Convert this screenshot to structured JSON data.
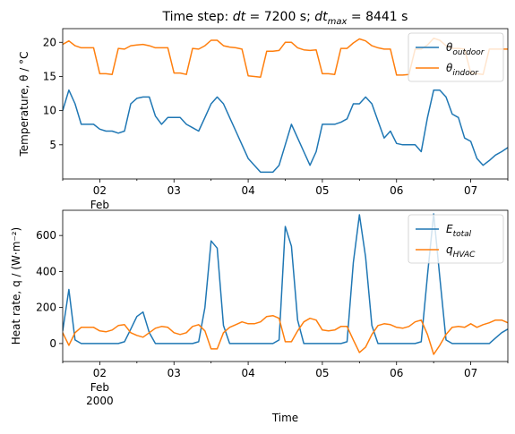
{
  "colors": {
    "blue": "#1f77b4",
    "orange": "#ff7f0e"
  },
  "chart_data": [
    {
      "type": "line",
      "title": "Time step: dt = 7200 s; dt_max = 8441 s",
      "title_parts": [
        "Time step: ",
        "dt",
        " = 7200 s; ",
        "dt",
        "max",
        " = 8441 s"
      ],
      "xlabel": "",
      "ylabel": "Temperature, θ / °C",
      "xlim": [
        1.5,
        7.5
      ],
      "ylim": [
        0,
        22
      ],
      "xticks": [
        2,
        3,
        4,
        5,
        6,
        7
      ],
      "xtick_labels": [
        "02",
        "03",
        "04",
        "05",
        "06",
        "07"
      ],
      "xtick_sublabels": [
        "Feb"
      ],
      "yticks": [
        5,
        10,
        15,
        20
      ],
      "ytick_labels": [
        "5",
        "10",
        "15",
        "20"
      ],
      "legend": "top-right",
      "legend_labels": [
        [
          "θ",
          "outdoor"
        ],
        [
          "θ",
          "indoor"
        ]
      ],
      "series": [
        {
          "name": "θ_outdoor",
          "color": "#1f77b4",
          "x": [
            1.5,
            1.583,
            1.667,
            1.75,
            1.833,
            1.917,
            2.0,
            2.083,
            2.167,
            2.25,
            2.333,
            2.417,
            2.5,
            2.583,
            2.667,
            2.75,
            2.833,
            2.917,
            3.0,
            3.083,
            3.167,
            3.25,
            3.333,
            3.417,
            3.5,
            3.583,
            3.667,
            3.75,
            3.833,
            3.917,
            4.0,
            4.083,
            4.167,
            4.25,
            4.333,
            4.417,
            4.5,
            4.583,
            4.667,
            4.75,
            4.833,
            4.917,
            5.0,
            5.083,
            5.167,
            5.25,
            5.333,
            5.417,
            5.5,
            5.583,
            5.667,
            5.75,
            5.833,
            5.917,
            6.0,
            6.083,
            6.167,
            6.25,
            6.333,
            6.417,
            6.5,
            6.583,
            6.667,
            6.75,
            6.833,
            6.917,
            7.0,
            7.083,
            7.167,
            7.25,
            7.333,
            7.417,
            7.5
          ],
          "y": [
            10,
            13,
            11,
            8,
            8,
            8,
            7.3,
            7,
            7,
            6.7,
            7,
            11,
            11.8,
            12,
            12,
            9.2,
            8,
            9,
            9,
            9,
            8,
            7.5,
            7,
            9,
            11,
            12,
            11,
            9,
            7,
            5,
            3,
            2,
            1,
            1,
            1,
            2,
            5,
            8,
            6,
            4,
            2,
            4,
            8,
            8,
            8,
            8.3,
            8.8,
            11,
            11,
            12,
            11,
            8.5,
            6,
            7,
            5.2,
            5,
            5,
            5,
            4,
            9,
            13,
            13,
            12,
            9.5,
            9,
            6,
            5.5,
            3,
            2,
            2.7,
            3.5,
            4,
            4.6
          ]
        },
        {
          "name": "θ_indoor",
          "color": "#ff7f0e",
          "x": [
            1.5,
            1.583,
            1.667,
            1.75,
            1.833,
            1.917,
            2.0,
            2.083,
            2.167,
            2.25,
            2.333,
            2.417,
            2.5,
            2.583,
            2.667,
            2.75,
            2.833,
            2.917,
            3.0,
            3.083,
            3.167,
            3.25,
            3.333,
            3.417,
            3.5,
            3.583,
            3.667,
            3.75,
            3.833,
            3.917,
            4.0,
            4.083,
            4.167,
            4.25,
            4.333,
            4.417,
            4.5,
            4.583,
            4.667,
            4.75,
            4.833,
            4.917,
            5.0,
            5.083,
            5.167,
            5.25,
            5.333,
            5.417,
            5.5,
            5.583,
            5.667,
            5.75,
            5.833,
            5.917,
            6.0,
            6.083,
            6.167,
            6.25,
            6.333,
            6.417,
            6.5,
            6.583,
            6.667,
            6.75,
            6.833,
            6.917,
            7.0,
            7.083,
            7.167,
            7.25,
            7.333,
            7.417,
            7.5
          ],
          "y": [
            19.7,
            20.2,
            19.5,
            19.2,
            19.2,
            19.2,
            15.4,
            15.4,
            15.3,
            19.1,
            19.0,
            19.5,
            19.6,
            19.7,
            19.5,
            19.2,
            19.2,
            19.2,
            15.5,
            15.5,
            15.3,
            19.1,
            19.0,
            19.5,
            20.3,
            20.3,
            19.5,
            19.3,
            19.2,
            19.0,
            15.1,
            15.0,
            14.9,
            18.7,
            18.7,
            18.8,
            20.0,
            20.0,
            19.2,
            18.9,
            18.8,
            18.9,
            15.4,
            15.4,
            15.3,
            19.1,
            19.1,
            19.9,
            20.5,
            20.2,
            19.5,
            19.2,
            19.0,
            19.0,
            15.2,
            15.2,
            15.3,
            19.0,
            19.0,
            19.6,
            20.6,
            20.3,
            19.5,
            19.1,
            19.1,
            19.0,
            15.5,
            15.4,
            15.3,
            19.0,
            19.0,
            19.0,
            19.0
          ]
        }
      ]
    },
    {
      "type": "line",
      "title": "",
      "xlabel": "Time",
      "ylabel": "Heat rate, q / (W·m⁻²)",
      "xlim": [
        1.5,
        7.5
      ],
      "ylim": [
        -100,
        740
      ],
      "xticks": [
        2,
        3,
        4,
        5,
        6,
        7
      ],
      "xtick_labels": [
        "02",
        "03",
        "04",
        "05",
        "06",
        "07"
      ],
      "xtick_sublabels": [
        "Feb",
        "2000"
      ],
      "yticks": [
        0,
        200,
        400,
        600
      ],
      "ytick_labels": [
        "0",
        "200",
        "400",
        "600"
      ],
      "legend": "top-right",
      "legend_labels": [
        [
          "E",
          "total"
        ],
        [
          "q",
          "HVAC"
        ]
      ],
      "series": [
        {
          "name": "E_total",
          "color": "#1f77b4",
          "x": [
            1.5,
            1.583,
            1.667,
            1.75,
            1.833,
            1.917,
            2.0,
            2.083,
            2.167,
            2.25,
            2.333,
            2.417,
            2.5,
            2.583,
            2.667,
            2.75,
            2.833,
            2.917,
            3.0,
            3.083,
            3.167,
            3.25,
            3.333,
            3.417,
            3.5,
            3.583,
            3.667,
            3.75,
            3.833,
            3.917,
            4.0,
            4.083,
            4.167,
            4.25,
            4.333,
            4.417,
            4.5,
            4.583,
            4.667,
            4.75,
            4.833,
            4.917,
            5.0,
            5.083,
            5.167,
            5.25,
            5.333,
            5.417,
            5.5,
            5.583,
            5.667,
            5.75,
            5.833,
            5.917,
            6.0,
            6.083,
            6.167,
            6.25,
            6.333,
            6.417,
            6.5,
            6.583,
            6.667,
            6.75,
            6.833,
            6.917,
            7.0,
            7.083,
            7.167,
            7.25,
            7.333,
            7.417,
            7.5
          ],
          "y": [
            70,
            300,
            20,
            0,
            0,
            0,
            0,
            0,
            0,
            0,
            10,
            80,
            150,
            175,
            60,
            0,
            0,
            0,
            0,
            0,
            0,
            0,
            10,
            200,
            570,
            530,
            100,
            0,
            0,
            0,
            0,
            0,
            0,
            0,
            0,
            20,
            650,
            540,
            130,
            0,
            0,
            0,
            0,
            0,
            0,
            0,
            10,
            450,
            715,
            480,
            100,
            0,
            0,
            0,
            0,
            0,
            0,
            0,
            10,
            380,
            720,
            370,
            20,
            0,
            0,
            0,
            0,
            0,
            0,
            0,
            30,
            60,
            80
          ]
        },
        {
          "name": "q_HVAC",
          "color": "#ff7f0e",
          "x": [
            1.5,
            1.583,
            1.667,
            1.75,
            1.833,
            1.917,
            2.0,
            2.083,
            2.167,
            2.25,
            2.333,
            2.417,
            2.5,
            2.583,
            2.667,
            2.75,
            2.833,
            2.917,
            3.0,
            3.083,
            3.167,
            3.25,
            3.333,
            3.417,
            3.5,
            3.583,
            3.667,
            3.75,
            3.833,
            3.917,
            4.0,
            4.083,
            4.167,
            4.25,
            4.333,
            4.417,
            4.5,
            4.583,
            4.667,
            4.75,
            4.833,
            4.917,
            5.0,
            5.083,
            5.167,
            5.25,
            5.333,
            5.417,
            5.5,
            5.583,
            5.667,
            5.75,
            5.833,
            5.917,
            6.0,
            6.083,
            6.167,
            6.25,
            6.333,
            6.417,
            6.5,
            6.583,
            6.667,
            6.75,
            6.833,
            6.917,
            7.0,
            7.083,
            7.167,
            7.25,
            7.333,
            7.417,
            7.5
          ],
          "y": [
            60,
            -10,
            60,
            90,
            90,
            90,
            70,
            65,
            75,
            100,
            105,
            60,
            45,
            35,
            60,
            85,
            95,
            90,
            60,
            50,
            60,
            95,
            105,
            70,
            -30,
            -30,
            60,
            90,
            105,
            120,
            110,
            110,
            120,
            150,
            155,
            140,
            10,
            10,
            70,
            120,
            140,
            130,
            75,
            70,
            75,
            95,
            95,
            20,
            -50,
            -20,
            50,
            100,
            110,
            105,
            90,
            85,
            95,
            120,
            130,
            50,
            -60,
            -10,
            50,
            90,
            95,
            90,
            110,
            90,
            105,
            115,
            130,
            130,
            115
          ]
        }
      ]
    }
  ]
}
